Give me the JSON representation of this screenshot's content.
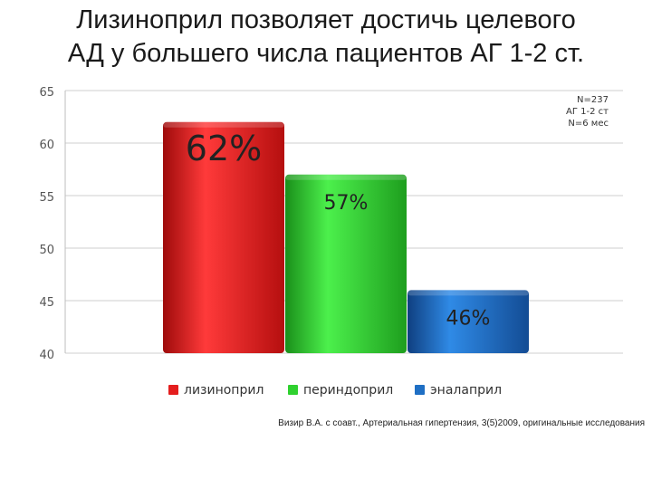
{
  "slide": {
    "title_lines": [
      "Лизиноприл позволяет достичь целевого",
      "АД у большего числа пациентов АГ 1-2 ст."
    ],
    "note_lines": [
      "N=237",
      "АГ 1-2 ст",
      "N=6 мес"
    ],
    "source": "Визир В.А. с соавт., Артериальная гипертензия, 3(5)2009, оригинальные исследования"
  },
  "chart_data": {
    "type": "bar",
    "categories": [
      "лизиноприл",
      "периндоприл",
      "эналаприл"
    ],
    "values": [
      62,
      57,
      46
    ],
    "data_labels": [
      "62%",
      "57%",
      "46%"
    ],
    "colors": [
      "#e41e1e",
      "#2fd12f",
      "#1f6fc4"
    ],
    "ylim": [
      40,
      65
    ],
    "yticks": [
      "40",
      "45",
      "50",
      "55",
      "60",
      "65"
    ],
    "grid": true,
    "legend_position": "bottom"
  }
}
